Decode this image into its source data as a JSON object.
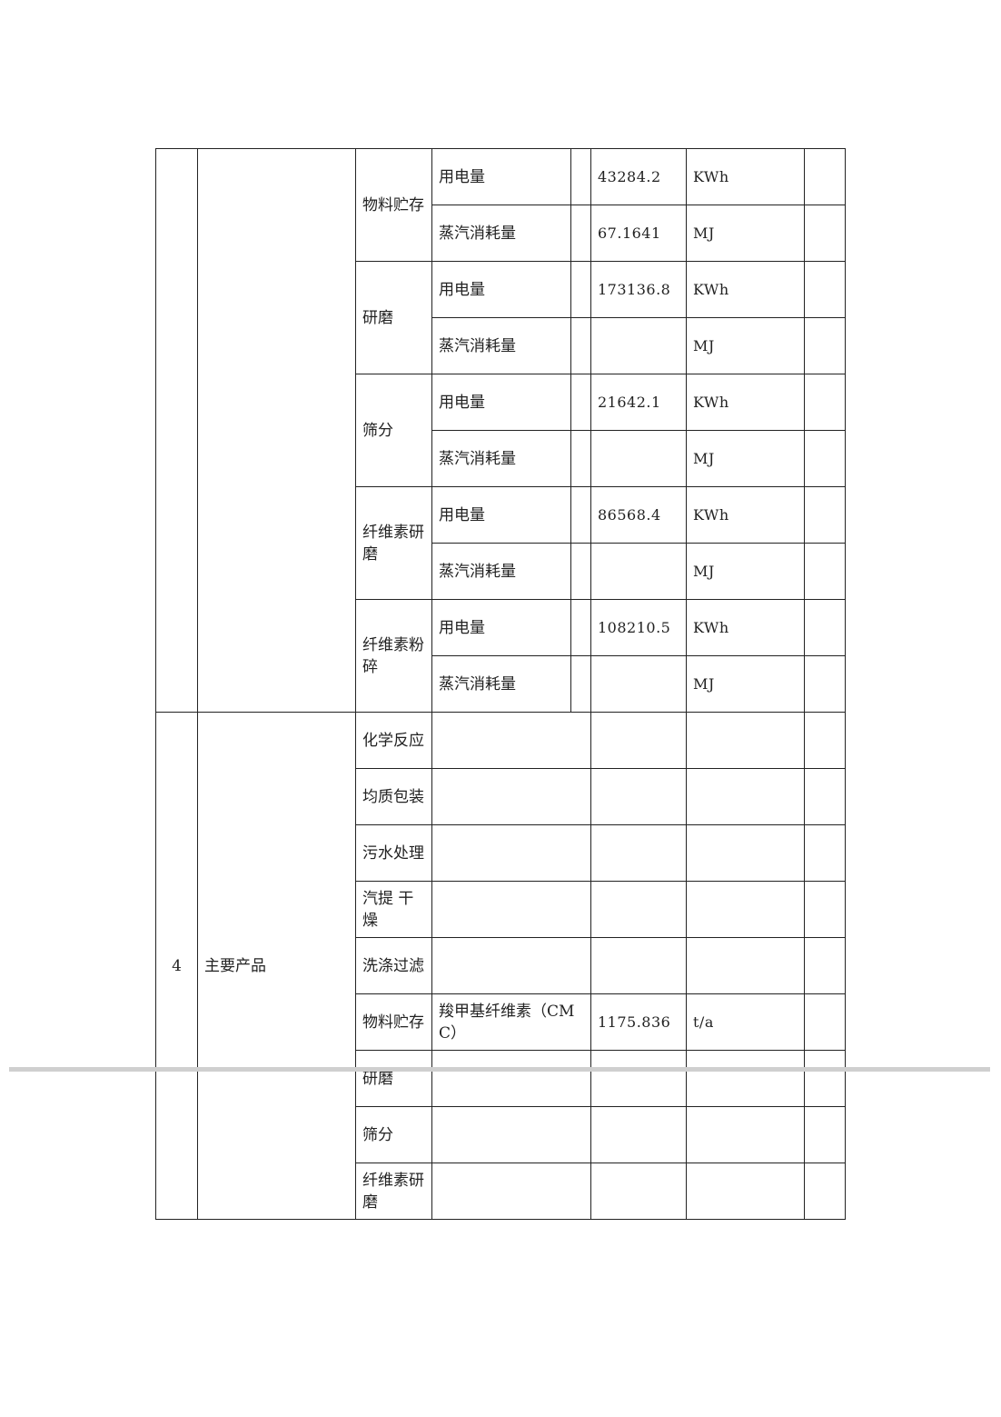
{
  "colors": {
    "line": "#222222",
    "text": "#222222",
    "scan_break": "#cfcfcf"
  },
  "section_energy": {
    "index": "",
    "category": "",
    "groups": [
      {
        "process": "物料贮存",
        "rows": [
          {
            "item": "用电量",
            "value": "43284.2",
            "unit": "KWh"
          },
          {
            "item": "蒸汽消耗量",
            "value": "67.1641",
            "unit": "MJ"
          }
        ]
      },
      {
        "process": "研磨",
        "rows": [
          {
            "item": "用电量",
            "value": "173136.8",
            "unit": "KWh"
          },
          {
            "item": "蒸汽消耗量",
            "value": "",
            "unit": "MJ"
          }
        ]
      },
      {
        "process": "筛分",
        "rows": [
          {
            "item": "用电量",
            "value": "21642.1",
            "unit": "KWh"
          },
          {
            "item": "蒸汽消耗量",
            "value": "",
            "unit": "MJ"
          }
        ]
      },
      {
        "process": "纤维素研磨",
        "rows": [
          {
            "item": "用电量",
            "value": "86568.4",
            "unit": "KWh"
          },
          {
            "item": "蒸汽消耗量",
            "value": "",
            "unit": "MJ"
          }
        ]
      },
      {
        "process": "纤维素粉碎",
        "rows": [
          {
            "item": "用电量",
            "value": "108210.5",
            "unit": "KWh"
          },
          {
            "item": "蒸汽消耗量",
            "value": "",
            "unit": "MJ"
          }
        ]
      }
    ]
  },
  "section_products": {
    "index": "4",
    "category": "主要产品",
    "rows": [
      {
        "process": "化学反应",
        "item": "",
        "value": "",
        "unit": ""
      },
      {
        "process": "均质包装",
        "item": "",
        "value": "",
        "unit": ""
      },
      {
        "process": "污水处理",
        "item": "",
        "value": "",
        "unit": ""
      },
      {
        "process": "汽提 干燥",
        "item": "",
        "value": "",
        "unit": ""
      },
      {
        "process": "洗涤过滤",
        "item": "",
        "value": "",
        "unit": ""
      },
      {
        "process": "物料贮存",
        "item": "羧甲基纤维素（CMC）",
        "value": "1175.836",
        "unit": "t/a"
      },
      {
        "process": "研磨",
        "item": "",
        "value": "",
        "unit": ""
      },
      {
        "process": "筛分",
        "item": "",
        "value": "",
        "unit": ""
      },
      {
        "process": "纤维素研磨",
        "item": "",
        "value": "",
        "unit": ""
      }
    ]
  }
}
